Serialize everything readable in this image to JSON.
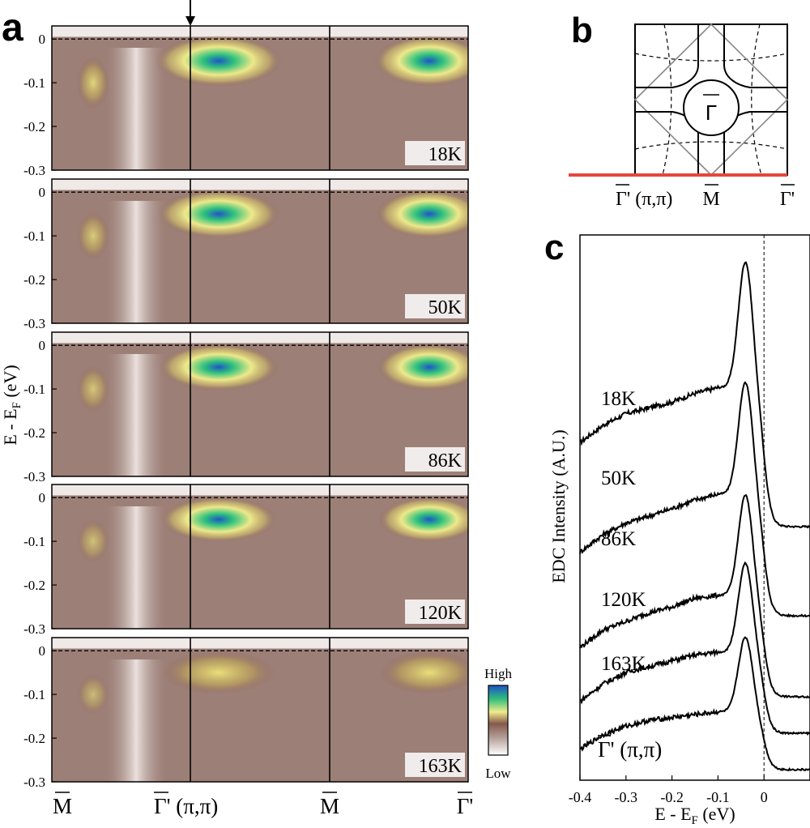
{
  "figure": {
    "panel_a_letter": "a",
    "panel_b_letter": "b",
    "panel_c_letter": "c"
  },
  "colors": {
    "accent_red": "#e8453c",
    "line": "#000000",
    "colormap": [
      "#ffffff",
      "#bfaea9",
      "#8b6255",
      "#f2ec8e",
      "#2fbf7a",
      "#1f5fc8"
    ]
  },
  "chart_data": [
    {
      "type": "heatmap",
      "panel": "a",
      "ylabel": "E - E",
      "ylabel_sub": "F",
      "ylabel_unit": " (eV)",
      "ylim": [
        -0.3,
        0.03
      ],
      "yticks": [
        "0",
        "-0.1",
        "-0.2",
        "-0.3"
      ],
      "x_labels": [
        "M",
        "Γ' (π,π)",
        "M",
        "Γ'"
      ],
      "colorbar": {
        "high": "High",
        "low": "Low"
      },
      "temperatures": [
        "18K",
        "50K",
        "86K",
        "120K",
        "163K"
      ],
      "peak_intensity": [
        1.0,
        0.82,
        0.72,
        0.6,
        0.45
      ],
      "fermi_level": 0
    },
    {
      "type": "diagram",
      "panel": "b",
      "center_label": "Γ",
      "x_labels": [
        "Γ' (π,π)",
        "M",
        "Γ'"
      ]
    },
    {
      "type": "line",
      "panel": "c",
      "title": "",
      "xlabel": "E - E",
      "xlabel_sub": "F",
      "xlabel_unit": " (eV)",
      "ylabel": "EDC Intensity (A.U.)",
      "xlim": [
        -0.4,
        0.1
      ],
      "xticks": [
        "-0.4",
        "-0.3",
        "-0.2",
        "-0.1",
        "0"
      ],
      "annotation": "Γ' (π,π)",
      "peak_position": -0.04,
      "series": [
        {
          "name": "18K",
          "peak": 2.2,
          "edge": 0.05,
          "tail": [
            1.45,
            1.75,
            1.95,
            2.05,
            2.15,
            2.3,
            2.4
          ]
        },
        {
          "name": "50K",
          "peak": 1.95,
          "edge": 0.07,
          "tail": [
            1.1,
            1.4,
            1.6,
            1.72,
            1.85,
            2.0,
            2.1
          ]
        },
        {
          "name": "86K",
          "peak": 1.75,
          "edge": 0.1,
          "tail": [
            0.85,
            1.15,
            1.3,
            1.45,
            1.55,
            1.7,
            1.75
          ]
        },
        {
          "name": "120K",
          "peak": 1.55,
          "edge": 0.14,
          "tail": [
            0.55,
            0.85,
            1.05,
            1.15,
            1.25,
            1.35,
            1.4
          ]
        },
        {
          "name": "163K",
          "peak": 1.3,
          "edge": 0.2,
          "tail": [
            0.35,
            0.6,
            0.75,
            0.85,
            0.9,
            0.95,
            1.0
          ]
        }
      ]
    }
  ]
}
